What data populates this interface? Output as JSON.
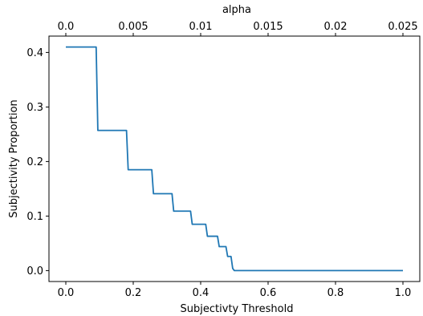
{
  "chart_data": {
    "type": "line",
    "xlabel": "Subjectivty Threshold",
    "ylabel": "Subjectivity Proportion",
    "top_axis_label": "alpha",
    "xlim": [
      -0.05,
      1.05
    ],
    "ylim": [
      -0.02,
      0.43
    ],
    "top_xlim": [
      -0.00125,
      0.02625
    ],
    "xticks": [
      0.0,
      0.2,
      0.4,
      0.6,
      0.8,
      1.0
    ],
    "xtick_labels": [
      "0.0",
      "0.2",
      "0.4",
      "0.6",
      "0.8",
      "1.0"
    ],
    "yticks": [
      0.0,
      0.1,
      0.2,
      0.3,
      0.4
    ],
    "ytick_labels": [
      "0.0",
      "0.1",
      "0.2",
      "0.3",
      "0.4"
    ],
    "top_xticks": [
      0.0,
      0.005,
      0.01,
      0.015,
      0.02,
      0.025
    ],
    "top_xtick_labels": [
      "0.0",
      "0.005",
      "0.01",
      "0.015",
      "0.02",
      "0.025"
    ],
    "grid": false,
    "legend": "none",
    "series": [
      {
        "color": "#1f77b4",
        "x": [
          0.0,
          0.09,
          0.095,
          0.18,
          0.185,
          0.255,
          0.26,
          0.315,
          0.32,
          0.37,
          0.375,
          0.415,
          0.42,
          0.45,
          0.455,
          0.475,
          0.48,
          0.49,
          0.495,
          0.5,
          1.0
        ],
        "y": [
          0.41,
          0.41,
          0.257,
          0.257,
          0.185,
          0.185,
          0.141,
          0.141,
          0.109,
          0.109,
          0.085,
          0.085,
          0.063,
          0.063,
          0.044,
          0.044,
          0.026,
          0.026,
          0.004,
          0.0,
          0.0
        ]
      }
    ]
  }
}
